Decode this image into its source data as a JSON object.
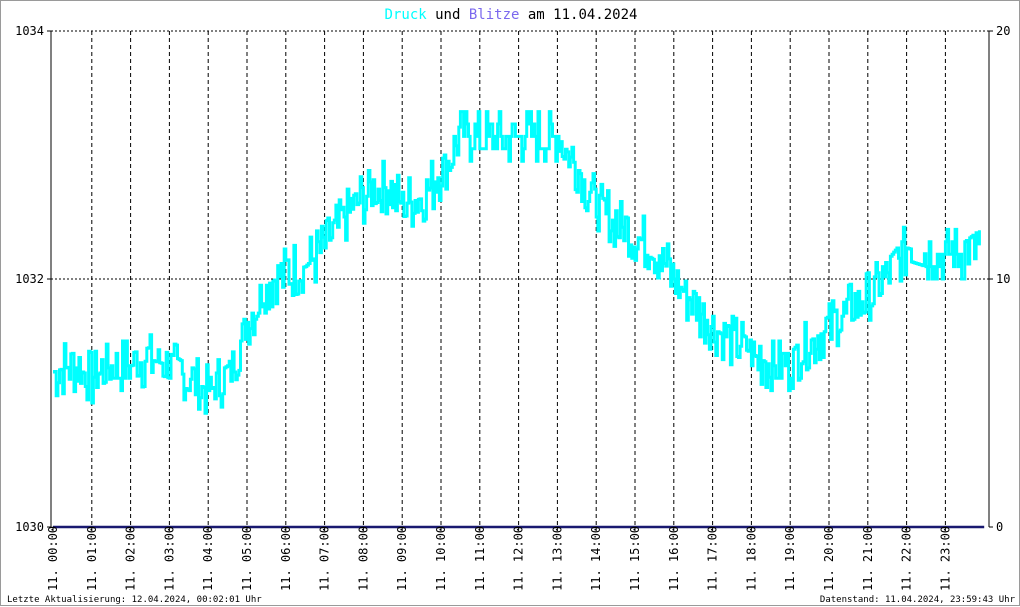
{
  "title": {
    "part1": "Druck",
    "part2": " und ",
    "part3": "Blitze",
    "part4": " am 11.04.2024",
    "color_druck": "#00ffff",
    "color_blitze": "#7b68ee"
  },
  "footer": {
    "left": "Letzte Aktualisierung: 12.04.2024, 00:02:01 Uhr",
    "right": "Datenstand: 11.04.2024, 23:59:43 Uhr"
  },
  "chart_data": {
    "type": "line",
    "title": "Druck und Blitze am 11.04.2024",
    "grid": true,
    "y_left": {
      "ticks": [
        "1030",
        "1032",
        "1034"
      ],
      "min": 1030,
      "max": 1034
    },
    "y_right": {
      "ticks": [
        "0",
        "10",
        "20"
      ],
      "min": 0,
      "max": 20
    },
    "x_ticks": [
      "11. 00:00",
      "11. 01:00",
      "11. 02:00",
      "11. 03:00",
      "11. 04:00",
      "11. 05:00",
      "11. 06:00",
      "11. 07:00",
      "11. 08:00",
      "11. 09:00",
      "11. 10:00",
      "11. 11:00",
      "11. 12:00",
      "11. 13:00",
      "11. 14:00",
      "11. 15:00",
      "11. 16:00",
      "11. 17:00",
      "11. 18:00",
      "11. 19:00",
      "11. 20:00",
      "11. 21:00",
      "11. 22:00",
      "11. 23:00"
    ],
    "series": [
      {
        "name": "Druck",
        "axis": "left",
        "color": "#00ffff",
        "x_hours": [
          0,
          0.5,
          1,
          1.5,
          2,
          2.5,
          3,
          3.5,
          4,
          4.5,
          5,
          5.5,
          6,
          6.5,
          7,
          7.5,
          8,
          8.5,
          9,
          9.5,
          10,
          10.5,
          11,
          11.5,
          12,
          12.5,
          13,
          13.5,
          14,
          14.5,
          15,
          15.5,
          16,
          16.5,
          17,
          17.5,
          18,
          18.5,
          19,
          19.5,
          20,
          20.5,
          21,
          21.5,
          22,
          22.5,
          23,
          23.5,
          23.9
        ],
        "values": [
          1031.25,
          1031.3,
          1031.2,
          1031.3,
          1031.3,
          1031.35,
          1031.3,
          1031.2,
          1031.1,
          1031.2,
          1031.65,
          1031.95,
          1032.05,
          1032.1,
          1032.25,
          1032.5,
          1032.65,
          1032.75,
          1032.6,
          1032.65,
          1032.85,
          1033.15,
          1033.15,
          1033.15,
          1033.15,
          1033.15,
          1033.15,
          1032.9,
          1032.6,
          1032.45,
          1032.35,
          1032.25,
          1032.0,
          1031.8,
          1031.6,
          1031.5,
          1031.4,
          1031.3,
          1031.3,
          1031.5,
          1031.6,
          1031.75,
          1031.85,
          1032.05,
          1032.25,
          1032.2,
          1032.2,
          1032.2,
          1032.3
        ]
      },
      {
        "name": "Blitze",
        "axis": "right",
        "color": "#191970",
        "x_hours": [
          0,
          24
        ],
        "values": [
          0,
          0
        ]
      }
    ]
  }
}
